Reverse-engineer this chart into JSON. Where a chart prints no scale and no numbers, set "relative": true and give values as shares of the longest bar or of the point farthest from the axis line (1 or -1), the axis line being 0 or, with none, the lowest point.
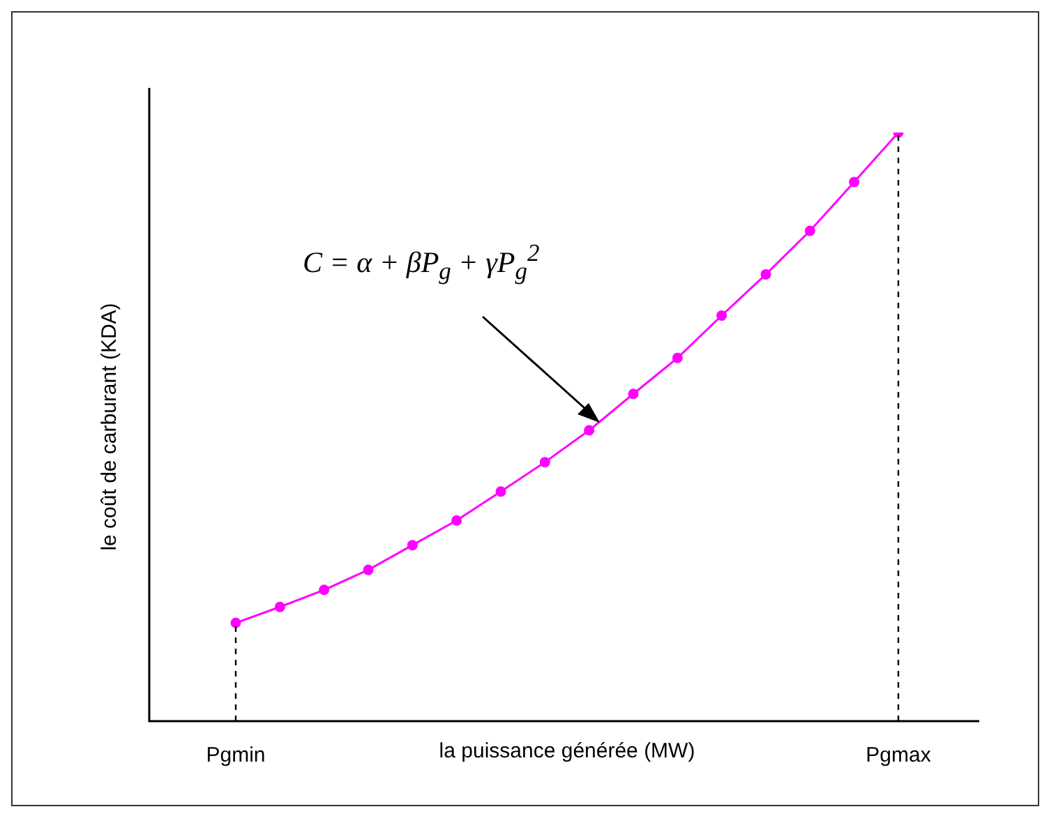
{
  "chart_data": {
    "type": "line",
    "relative": true,
    "xlabel": "la puissance générée (MW)",
    "ylabel": "le coût de carburant (KDA)",
    "categories": [
      "Pgmin",
      null,
      null,
      null,
      null,
      null,
      null,
      null,
      null,
      null,
      null,
      null,
      null,
      null,
      null,
      "Pgmax"
    ],
    "series": [
      {
        "color": "#ff00ff",
        "values": [
          0.167,
          0.194,
          0.223,
          0.257,
          0.299,
          0.341,
          0.39,
          0.44,
          0.494,
          0.556,
          0.617,
          0.689,
          0.759,
          0.833,
          0.916,
          1
        ]
      }
    ],
    "marker": "circle",
    "line_style": "solid",
    "grid": false,
    "legend": false,
    "ref_lines": [
      {
        "axis": "x",
        "value": "Pgmin",
        "line_style": "dashed",
        "color": "#000000"
      },
      {
        "axis": "x",
        "value": "Pgmax",
        "line_style": "dashed",
        "color": "#000000"
      }
    ],
    "annotations": [
      "C = α + βP$_{g}$ + γP$_{g}$$^{2}$"
    ]
  }
}
